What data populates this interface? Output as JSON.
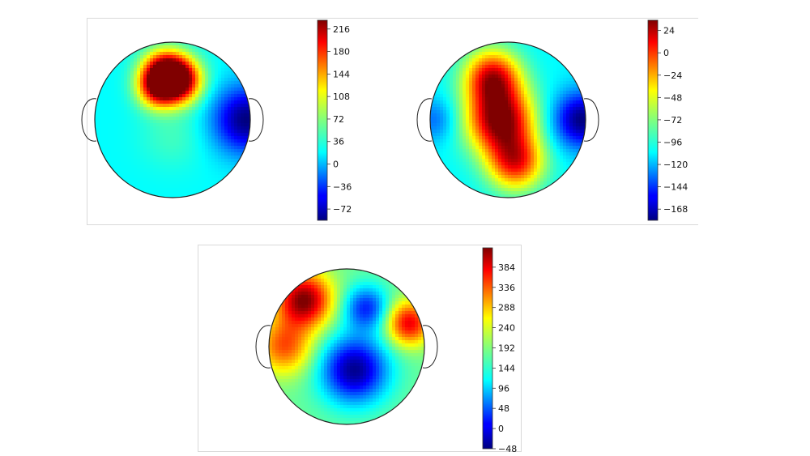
{
  "chart_data": [
    {
      "type": "heatmap",
      "colormap": "jet",
      "colorbar_ticks": [
        216,
        180,
        144,
        108,
        72,
        36,
        0,
        -36,
        -72
      ],
      "colorbar_range": [
        -90,
        230
      ],
      "title": "",
      "xlabel": "",
      "ylabel": "",
      "hotspots": [
        {
          "x": -0.1,
          "y": 0.6,
          "value": 230,
          "spread": 0.2
        },
        {
          "x": 0.1,
          "y": 0.5,
          "value": 200,
          "spread": 0.2
        },
        {
          "x": -0.2,
          "y": 0.4,
          "value": 150,
          "spread": 0.18
        },
        {
          "x": 0.95,
          "y": 0.0,
          "value": -90,
          "spread": 0.3
        },
        {
          "x": 0.0,
          "y": -0.2,
          "value": 50,
          "spread": 0.3
        }
      ],
      "baseline": 30
    },
    {
      "type": "heatmap",
      "colormap": "jet",
      "colorbar_ticks": [
        24,
        0,
        -24,
        -48,
        -72,
        -96,
        -120,
        -144,
        -168
      ],
      "colorbar_range": [
        -180,
        35
      ],
      "title": "",
      "xlabel": "",
      "ylabel": "",
      "hotspots": [
        {
          "x": -0.1,
          "y": 0.0,
          "value": 35,
          "spread": 0.3
        },
        {
          "x": -0.2,
          "y": 0.55,
          "value": 10,
          "spread": 0.25
        },
        {
          "x": 0.1,
          "y": -0.55,
          "value": 0,
          "spread": 0.25
        },
        {
          "x": 0.95,
          "y": 0.0,
          "value": -180,
          "spread": 0.25
        },
        {
          "x": -0.95,
          "y": 0.0,
          "value": -130,
          "spread": 0.2
        }
      ],
      "baseline": -100
    },
    {
      "type": "heatmap",
      "colormap": "jet",
      "colorbar_ticks": [
        384,
        336,
        288,
        240,
        192,
        144,
        96,
        48,
        0,
        -48
      ],
      "colorbar_range": [
        -48,
        430
      ],
      "title": "",
      "xlabel": "",
      "ylabel": "",
      "hotspots": [
        {
          "x": -0.55,
          "y": 0.6,
          "value": 430,
          "spread": 0.25
        },
        {
          "x": -0.8,
          "y": 0.0,
          "value": 330,
          "spread": 0.25
        },
        {
          "x": 0.8,
          "y": 0.3,
          "value": 380,
          "spread": 0.2
        },
        {
          "x": 0.1,
          "y": -0.3,
          "value": -40,
          "spread": 0.3
        },
        {
          "x": 0.25,
          "y": 0.5,
          "value": 30,
          "spread": 0.2
        }
      ],
      "baseline": 180
    }
  ]
}
